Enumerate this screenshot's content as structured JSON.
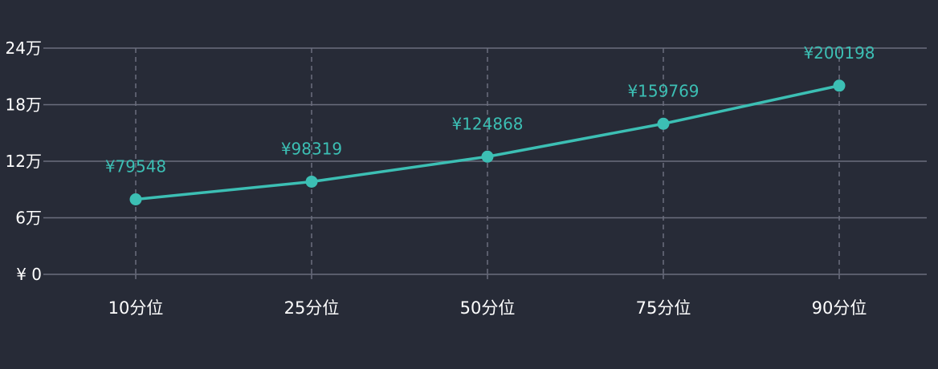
{
  "colors": {
    "background": "#272b37",
    "series": "#3cbfb4",
    "grid": "#6b6e7e",
    "text": "#ffffff"
  },
  "chart_data": {
    "type": "line",
    "categories": [
      "10分位",
      "25分位",
      "50分位",
      "75分位",
      "90分位"
    ],
    "series": [
      {
        "values": [
          79548,
          98319,
          124868,
          159769,
          200198
        ],
        "data_labels": [
          "¥79548",
          "¥98319",
          "¥124868",
          "¥159769",
          "¥200198"
        ]
      }
    ],
    "y_ticks": [
      {
        "value": 0,
        "label": "¥ 0"
      },
      {
        "value": 60000,
        "label": "6万"
      },
      {
        "value": 120000,
        "label": "12万"
      },
      {
        "value": 180000,
        "label": "18万"
      },
      {
        "value": 240000,
        "label": "24万"
      }
    ],
    "ylim": [
      0,
      240000
    ],
    "grid": true,
    "legend": "none"
  }
}
